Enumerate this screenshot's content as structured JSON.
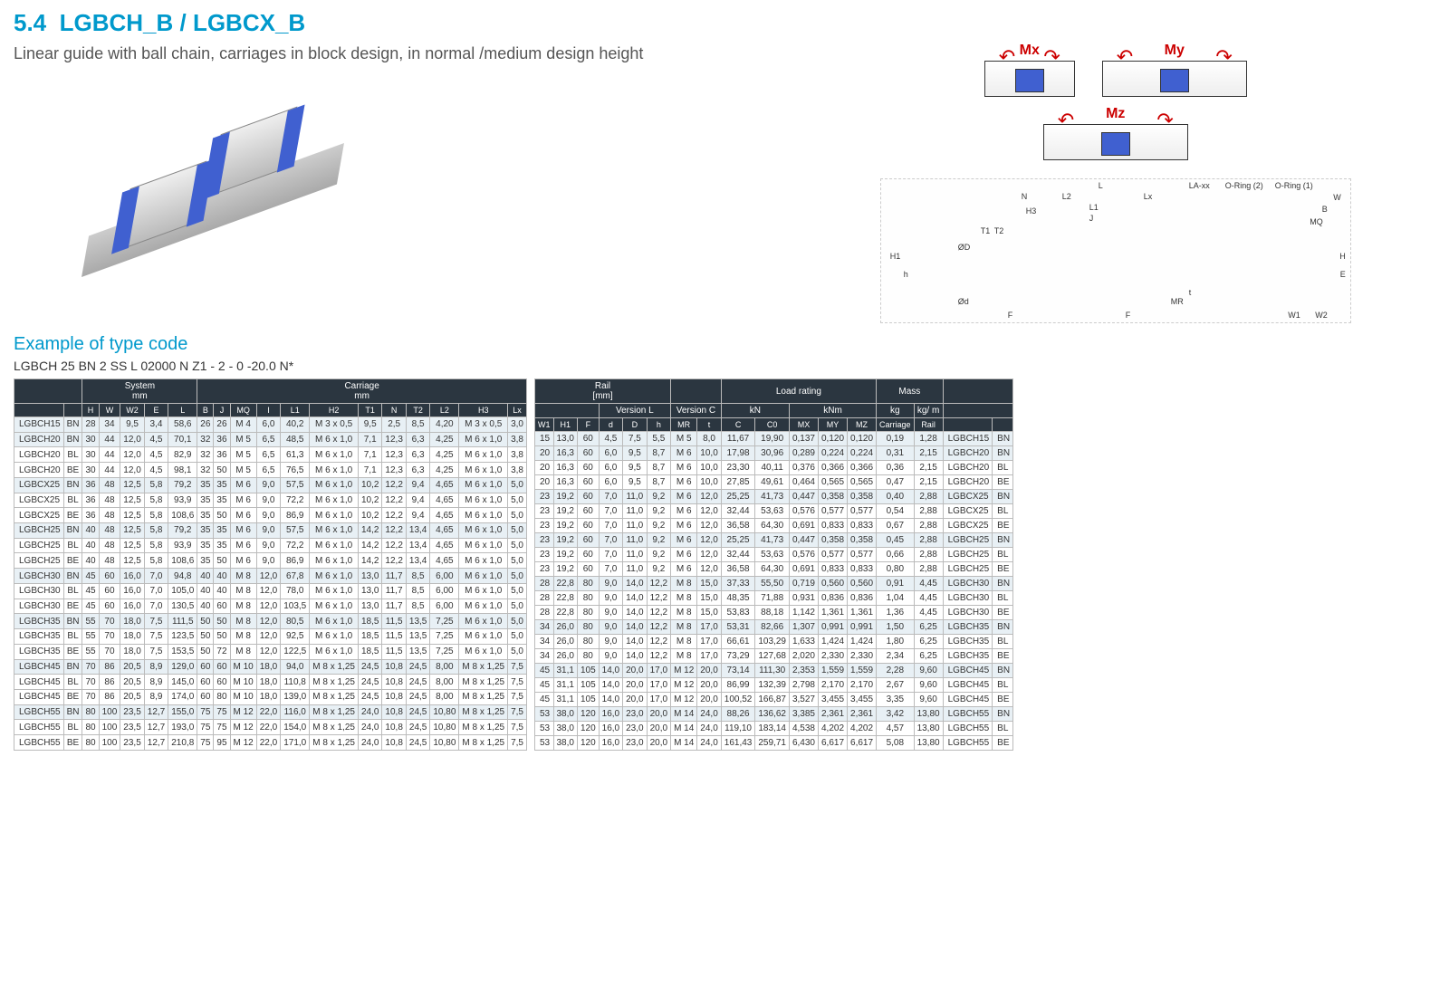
{
  "section_number": "5.4",
  "section_title": "LGBCH_B / LGBCX_B",
  "subtitle": "Linear guide with ball chain, carriages in block design, in normal /medium design height",
  "example_heading": "Example of type code",
  "example_code": "LGBCH 25 BN 2 SS L 02000 N Z1 - 2 - 0 -20.0 N*",
  "moments": [
    "Mx",
    "My",
    "Mz"
  ],
  "drawing_labels": {
    "L": "L",
    "L1": "L1",
    "L2": "L2",
    "Lx": "Lx",
    "J": "J",
    "N": "N",
    "T1": "T1",
    "T2": "T2",
    "H1": "H1",
    "h": "h",
    "H3": "H3",
    "ØD": "ØD",
    "Ød": "Ød",
    "F": "F",
    "MR": "MR",
    "t": "t",
    "LA": "LA-xx",
    "OR1": "O-Ring (1)",
    "OR2": "O-Ring (2)",
    "W": "W",
    "B": "B",
    "MQ": "MQ",
    "H": "H",
    "E": "E",
    "W1": "W1",
    "W2": "W2"
  },
  "table1": {
    "group_headers": [
      "",
      "System\nmm",
      "Carriage\nmm"
    ],
    "group_spans": [
      2,
      5,
      12
    ],
    "cols": [
      "",
      "",
      "H",
      "W",
      "W2",
      "E",
      "L",
      "B",
      "J",
      "MQ",
      "I",
      "L1",
      "H2",
      "T1",
      "N",
      "T2",
      "L2",
      "H3",
      "Lx"
    ],
    "rows": [
      [
        "LGBCH15",
        "BN",
        "28",
        "34",
        "9,5",
        "3,4",
        "58,6",
        "26",
        "26",
        "M 4",
        "6,0",
        "40,2",
        "M 3 x 0,5",
        "9,5",
        "2,5",
        "8,5",
        "4,20",
        "M 3 x 0,5",
        "3,0"
      ],
      [
        "LGBCH20",
        "BN",
        "30",
        "44",
        "12,0",
        "4,5",
        "70,1",
        "32",
        "36",
        "M 5",
        "6,5",
        "48,5",
        "M 6 x 1,0",
        "7,1",
        "12,3",
        "6,3",
        "4,25",
        "M 6 x 1,0",
        "3,8"
      ],
      [
        "LGBCH20",
        "BL",
        "30",
        "44",
        "12,0",
        "4,5",
        "82,9",
        "32",
        "36",
        "M 5",
        "6,5",
        "61,3",
        "M 6 x 1,0",
        "7,1",
        "12,3",
        "6,3",
        "4,25",
        "M 6 x 1,0",
        "3,8"
      ],
      [
        "LGBCH20",
        "BE",
        "30",
        "44",
        "12,0",
        "4,5",
        "98,1",
        "32",
        "50",
        "M 5",
        "6,5",
        "76,5",
        "M 6 x 1,0",
        "7,1",
        "12,3",
        "6,3",
        "4,25",
        "M 6 x 1,0",
        "3,8"
      ],
      [
        "LGBCX25",
        "BN",
        "36",
        "48",
        "12,5",
        "5,8",
        "79,2",
        "35",
        "35",
        "M 6",
        "9,0",
        "57,5",
        "M 6 x 1,0",
        "10,2",
        "12,2",
        "9,4",
        "4,65",
        "M 6 x 1,0",
        "5,0"
      ],
      [
        "LGBCX25",
        "BL",
        "36",
        "48",
        "12,5",
        "5,8",
        "93,9",
        "35",
        "35",
        "M 6",
        "9,0",
        "72,2",
        "M 6 x 1,0",
        "10,2",
        "12,2",
        "9,4",
        "4,65",
        "M 6 x 1,0",
        "5,0"
      ],
      [
        "LGBCX25",
        "BE",
        "36",
        "48",
        "12,5",
        "5,8",
        "108,6",
        "35",
        "50",
        "M 6",
        "9,0",
        "86,9",
        "M 6 x 1,0",
        "10,2",
        "12,2",
        "9,4",
        "4,65",
        "M 6 x 1,0",
        "5,0"
      ],
      [
        "LGBCH25",
        "BN",
        "40",
        "48",
        "12,5",
        "5,8",
        "79,2",
        "35",
        "35",
        "M 6",
        "9,0",
        "57,5",
        "M 6 x 1,0",
        "14,2",
        "12,2",
        "13,4",
        "4,65",
        "M 6 x 1,0",
        "5,0"
      ],
      [
        "LGBCH25",
        "BL",
        "40",
        "48",
        "12,5",
        "5,8",
        "93,9",
        "35",
        "35",
        "M 6",
        "9,0",
        "72,2",
        "M 6 x 1,0",
        "14,2",
        "12,2",
        "13,4",
        "4,65",
        "M 6 x 1,0",
        "5,0"
      ],
      [
        "LGBCH25",
        "BE",
        "40",
        "48",
        "12,5",
        "5,8",
        "108,6",
        "35",
        "50",
        "M 6",
        "9,0",
        "86,9",
        "M 6 x 1,0",
        "14,2",
        "12,2",
        "13,4",
        "4,65",
        "M 6 x 1,0",
        "5,0"
      ],
      [
        "LGBCH30",
        "BN",
        "45",
        "60",
        "16,0",
        "7,0",
        "94,8",
        "40",
        "40",
        "M 8",
        "12,0",
        "67,8",
        "M 6 x 1,0",
        "13,0",
        "11,7",
        "8,5",
        "6,00",
        "M 6 x 1,0",
        "5,0"
      ],
      [
        "LGBCH30",
        "BL",
        "45",
        "60",
        "16,0",
        "7,0",
        "105,0",
        "40",
        "40",
        "M 8",
        "12,0",
        "78,0",
        "M 6 x 1,0",
        "13,0",
        "11,7",
        "8,5",
        "6,00",
        "M 6 x 1,0",
        "5,0"
      ],
      [
        "LGBCH30",
        "BE",
        "45",
        "60",
        "16,0",
        "7,0",
        "130,5",
        "40",
        "60",
        "M 8",
        "12,0",
        "103,5",
        "M 6 x 1,0",
        "13,0",
        "11,7",
        "8,5",
        "6,00",
        "M 6 x 1,0",
        "5,0"
      ],
      [
        "LGBCH35",
        "BN",
        "55",
        "70",
        "18,0",
        "7,5",
        "111,5",
        "50",
        "50",
        "M 8",
        "12,0",
        "80,5",
        "M 6 x 1,0",
        "18,5",
        "11,5",
        "13,5",
        "7,25",
        "M 6 x 1,0",
        "5,0"
      ],
      [
        "LGBCH35",
        "BL",
        "55",
        "70",
        "18,0",
        "7,5",
        "123,5",
        "50",
        "50",
        "M 8",
        "12,0",
        "92,5",
        "M 6 x 1,0",
        "18,5",
        "11,5",
        "13,5",
        "7,25",
        "M 6 x 1,0",
        "5,0"
      ],
      [
        "LGBCH35",
        "BE",
        "55",
        "70",
        "18,0",
        "7,5",
        "153,5",
        "50",
        "72",
        "M 8",
        "12,0",
        "122,5",
        "M 6 x 1,0",
        "18,5",
        "11,5",
        "13,5",
        "7,25",
        "M 6 x 1,0",
        "5,0"
      ],
      [
        "LGBCH45",
        "BN",
        "70",
        "86",
        "20,5",
        "8,9",
        "129,0",
        "60",
        "60",
        "M 10",
        "18,0",
        "94,0",
        "M 8 x 1,25",
        "24,5",
        "10,8",
        "24,5",
        "8,00",
        "M 8 x 1,25",
        "7,5"
      ],
      [
        "LGBCH45",
        "BL",
        "70",
        "86",
        "20,5",
        "8,9",
        "145,0",
        "60",
        "60",
        "M 10",
        "18,0",
        "110,8",
        "M 8 x 1,25",
        "24,5",
        "10,8",
        "24,5",
        "8,00",
        "M 8 x 1,25",
        "7,5"
      ],
      [
        "LGBCH45",
        "BE",
        "70",
        "86",
        "20,5",
        "8,9",
        "174,0",
        "60",
        "80",
        "M 10",
        "18,0",
        "139,0",
        "M 8 x 1,25",
        "24,5",
        "10,8",
        "24,5",
        "8,00",
        "M 8 x 1,25",
        "7,5"
      ],
      [
        "LGBCH55",
        "BN",
        "80",
        "100",
        "23,5",
        "12,7",
        "155,0",
        "75",
        "75",
        "M 12",
        "22,0",
        "116,0",
        "M 8 x 1,25",
        "24,0",
        "10,8",
        "24,5",
        "10,80",
        "M 8 x 1,25",
        "7,5"
      ],
      [
        "LGBCH55",
        "BL",
        "80",
        "100",
        "23,5",
        "12,7",
        "193,0",
        "75",
        "75",
        "M 12",
        "22,0",
        "154,0",
        "M 8 x 1,25",
        "24,0",
        "10,8",
        "24,5",
        "10,80",
        "M 8 x 1,25",
        "7,5"
      ],
      [
        "LGBCH55",
        "BE",
        "80",
        "100",
        "23,5",
        "12,7",
        "210,8",
        "75",
        "95",
        "M 12",
        "22,0",
        "171,0",
        "M 8 x 1,25",
        "24,0",
        "10,8",
        "24,5",
        "10,80",
        "M 8 x 1,25",
        "7,5"
      ]
    ]
  },
  "table2": {
    "top_headers": [
      {
        "label": "Rail\n[mm]",
        "span": 6
      },
      {
        "label": "",
        "span": 2
      },
      {
        "label": "Load rating",
        "span": 5
      },
      {
        "label": "Mass",
        "span": 2
      },
      {
        "label": "",
        "span": 2
      }
    ],
    "mid_headers": [
      {
        "label": "",
        "span": 3
      },
      {
        "label": "Version L",
        "span": 3
      },
      {
        "label": "Version C",
        "span": 2
      },
      {
        "label": "kN",
        "span": 2
      },
      {
        "label": "kNm",
        "span": 3
      },
      {
        "label": "kg",
        "span": 1
      },
      {
        "label": "kg/ m",
        "span": 1
      },
      {
        "label": "",
        "span": 2
      }
    ],
    "cols": [
      "W1",
      "H1",
      "F",
      "d",
      "D",
      "h",
      "MR",
      "t",
      "C",
      "C0",
      "MX",
      "MY",
      "MZ",
      "Carriage",
      "Rail",
      "",
      ""
    ],
    "rows": [
      [
        "15",
        "13,0",
        "60",
        "4,5",
        "7,5",
        "5,5",
        "M 5",
        "8,0",
        "11,67",
        "19,90",
        "0,137",
        "0,120",
        "0,120",
        "0,19",
        "1,28",
        "LGBCH15",
        "BN"
      ],
      [
        "20",
        "16,3",
        "60",
        "6,0",
        "9,5",
        "8,7",
        "M 6",
        "10,0",
        "17,98",
        "30,96",
        "0,289",
        "0,224",
        "0,224",
        "0,31",
        "2,15",
        "LGBCH20",
        "BN"
      ],
      [
        "20",
        "16,3",
        "60",
        "6,0",
        "9,5",
        "8,7",
        "M 6",
        "10,0",
        "23,30",
        "40,11",
        "0,376",
        "0,366",
        "0,366",
        "0,36",
        "2,15",
        "LGBCH20",
        "BL"
      ],
      [
        "20",
        "16,3",
        "60",
        "6,0",
        "9,5",
        "8,7",
        "M 6",
        "10,0",
        "27,85",
        "49,61",
        "0,464",
        "0,565",
        "0,565",
        "0,47",
        "2,15",
        "LGBCH20",
        "BE"
      ],
      [
        "23",
        "19,2",
        "60",
        "7,0",
        "11,0",
        "9,2",
        "M 6",
        "12,0",
        "25,25",
        "41,73",
        "0,447",
        "0,358",
        "0,358",
        "0,40",
        "2,88",
        "LGBCX25",
        "BN"
      ],
      [
        "23",
        "19,2",
        "60",
        "7,0",
        "11,0",
        "9,2",
        "M 6",
        "12,0",
        "32,44",
        "53,63",
        "0,576",
        "0,577",
        "0,577",
        "0,54",
        "2,88",
        "LGBCX25",
        "BL"
      ],
      [
        "23",
        "19,2",
        "60",
        "7,0",
        "11,0",
        "9,2",
        "M 6",
        "12,0",
        "36,58",
        "64,30",
        "0,691",
        "0,833",
        "0,833",
        "0,67",
        "2,88",
        "LGBCX25",
        "BE"
      ],
      [
        "23",
        "19,2",
        "60",
        "7,0",
        "11,0",
        "9,2",
        "M 6",
        "12,0",
        "25,25",
        "41,73",
        "0,447",
        "0,358",
        "0,358",
        "0,45",
        "2,88",
        "LGBCH25",
        "BN"
      ],
      [
        "23",
        "19,2",
        "60",
        "7,0",
        "11,0",
        "9,2",
        "M 6",
        "12,0",
        "32,44",
        "53,63",
        "0,576",
        "0,577",
        "0,577",
        "0,66",
        "2,88",
        "LGBCH25",
        "BL"
      ],
      [
        "23",
        "19,2",
        "60",
        "7,0",
        "11,0",
        "9,2",
        "M 6",
        "12,0",
        "36,58",
        "64,30",
        "0,691",
        "0,833",
        "0,833",
        "0,80",
        "2,88",
        "LGBCH25",
        "BE"
      ],
      [
        "28",
        "22,8",
        "80",
        "9,0",
        "14,0",
        "12,2",
        "M 8",
        "15,0",
        "37,33",
        "55,50",
        "0,719",
        "0,560",
        "0,560",
        "0,91",
        "4,45",
        "LGBCH30",
        "BN"
      ],
      [
        "28",
        "22,8",
        "80",
        "9,0",
        "14,0",
        "12,2",
        "M 8",
        "15,0",
        "48,35",
        "71,88",
        "0,931",
        "0,836",
        "0,836",
        "1,04",
        "4,45",
        "LGBCH30",
        "BL"
      ],
      [
        "28",
        "22,8",
        "80",
        "9,0",
        "14,0",
        "12,2",
        "M 8",
        "15,0",
        "53,83",
        "88,18",
        "1,142",
        "1,361",
        "1,361",
        "1,36",
        "4,45",
        "LGBCH30",
        "BE"
      ],
      [
        "34",
        "26,0",
        "80",
        "9,0",
        "14,0",
        "12,2",
        "M 8",
        "17,0",
        "53,31",
        "82,66",
        "1,307",
        "0,991",
        "0,991",
        "1,50",
        "6,25",
        "LGBCH35",
        "BN"
      ],
      [
        "34",
        "26,0",
        "80",
        "9,0",
        "14,0",
        "12,2",
        "M 8",
        "17,0",
        "66,61",
        "103,29",
        "1,633",
        "1,424",
        "1,424",
        "1,80",
        "6,25",
        "LGBCH35",
        "BL"
      ],
      [
        "34",
        "26,0",
        "80",
        "9,0",
        "14,0",
        "12,2",
        "M 8",
        "17,0",
        "73,29",
        "127,68",
        "2,020",
        "2,330",
        "2,330",
        "2,34",
        "6,25",
        "LGBCH35",
        "BE"
      ],
      [
        "45",
        "31,1",
        "105",
        "14,0",
        "20,0",
        "17,0",
        "M 12",
        "20,0",
        "73,14",
        "111,30",
        "2,353",
        "1,559",
        "1,559",
        "2,28",
        "9,60",
        "LGBCH45",
        "BN"
      ],
      [
        "45",
        "31,1",
        "105",
        "14,0",
        "20,0",
        "17,0",
        "M 12",
        "20,0",
        "86,99",
        "132,39",
        "2,798",
        "2,170",
        "2,170",
        "2,67",
        "9,60",
        "LGBCH45",
        "BL"
      ],
      [
        "45",
        "31,1",
        "105",
        "14,0",
        "20,0",
        "17,0",
        "M 12",
        "20,0",
        "100,52",
        "166,87",
        "3,527",
        "3,455",
        "3,455",
        "3,35",
        "9,60",
        "LGBCH45",
        "BE"
      ],
      [
        "53",
        "38,0",
        "120",
        "16,0",
        "23,0",
        "20,0",
        "M 14",
        "24,0",
        "88,26",
        "136,62",
        "3,385",
        "2,361",
        "2,361",
        "3,42",
        "13,80",
        "LGBCH55",
        "BN"
      ],
      [
        "53",
        "38,0",
        "120",
        "16,0",
        "23,0",
        "20,0",
        "M 14",
        "24,0",
        "119,10",
        "183,14",
        "4,538",
        "4,202",
        "4,202",
        "4,57",
        "13,80",
        "LGBCH55",
        "BL"
      ],
      [
        "53",
        "38,0",
        "120",
        "16,0",
        "23,0",
        "20,0",
        "M 14",
        "24,0",
        "161,43",
        "259,71",
        "6,430",
        "6,617",
        "6,617",
        "5,08",
        "13,80",
        "LGBCH55",
        "BE"
      ]
    ]
  },
  "group_starts": [
    0,
    1,
    4,
    7,
    10,
    13,
    16,
    19
  ],
  "colors": {
    "accent": "#0099cc",
    "header_bg": "#2b3640",
    "block_blue": "#4060d0"
  }
}
